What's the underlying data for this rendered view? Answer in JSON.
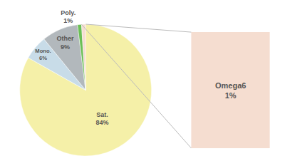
{
  "chart_data": {
    "type": "pie",
    "categories": [
      "Sat.",
      "Mono.",
      "Other",
      "Poly.",
      "Omega6"
    ],
    "values": [
      84,
      6,
      9,
      1,
      1
    ],
    "value_labels": [
      "84%",
      "6%",
      "9%",
      "1%",
      "1%"
    ],
    "colors": [
      "#f5f0a8",
      "#c8dce8",
      "#b2b8bc",
      "#6abf55",
      "#f5ddd0"
    ]
  }
}
